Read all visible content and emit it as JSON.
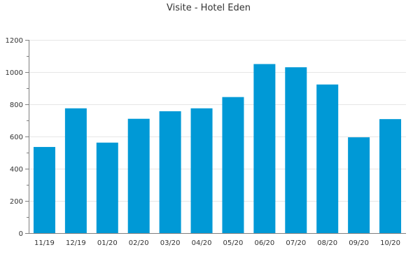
{
  "chart_data": {
    "type": "bar",
    "title": "Visite - Hotel Eden",
    "xlabel": "",
    "ylabel": "",
    "categories": [
      "11/19",
      "12/19",
      "01/20",
      "02/20",
      "03/20",
      "04/20",
      "05/20",
      "06/20",
      "07/20",
      "08/20",
      "09/20",
      "10/20"
    ],
    "values": [
      535,
      775,
      562,
      710,
      757,
      775,
      845,
      1050,
      1030,
      923,
      595,
      708
    ],
    "ylim": [
      0,
      1200
    ],
    "yticks": [
      0,
      200,
      400,
      600,
      800,
      1000,
      1200
    ],
    "ytick_labels": [
      "0",
      "200",
      "400",
      "600",
      "800",
      "1000",
      "1200"
    ],
    "grid": true,
    "bar_color": "#0099d6"
  }
}
